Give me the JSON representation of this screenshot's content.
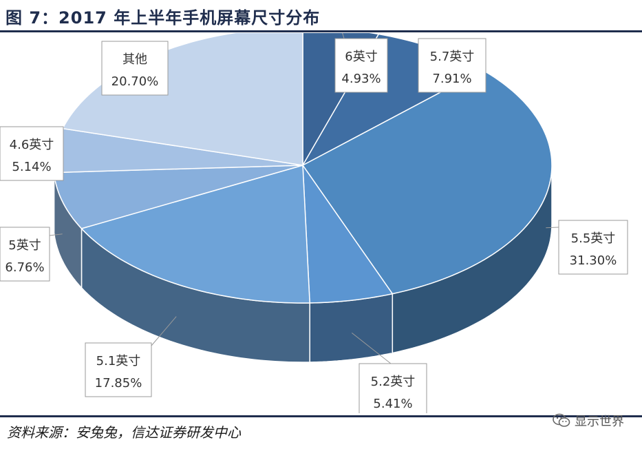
{
  "figure_title": "图 7：2017 年上半年手机屏幕尺寸分布",
  "source_note": "资料来源：安兔兔，信达证券研发中心",
  "watermark_text": "显示世界",
  "chart_data": {
    "type": "pie",
    "title": "",
    "slices": [
      {
        "label": "6英寸",
        "value": 4.93,
        "display": "4.93%",
        "color": "#3a6496"
      },
      {
        "label": "5.7英寸",
        "value": 7.91,
        "display": "7.91%",
        "color": "#3f6ea3"
      },
      {
        "label": "5.5英寸",
        "value": 31.3,
        "display": "31.30%",
        "color": "#4e89c0"
      },
      {
        "label": "5.2英寸",
        "value": 5.41,
        "display": "5.41%",
        "color": "#5b95d1"
      },
      {
        "label": "5.1英寸",
        "value": 17.85,
        "display": "17.85%",
        "color": "#6ea3d8"
      },
      {
        "label": "5英寸",
        "value": 6.76,
        "display": "6.76%",
        "color": "#88afdc"
      },
      {
        "label": "4.6英寸",
        "value": 5.14,
        "display": "5.14%",
        "color": "#a5c1e4"
      },
      {
        "label": "其他",
        "value": 20.7,
        "display": "20.70%",
        "color": "#c3d5ec"
      }
    ]
  }
}
